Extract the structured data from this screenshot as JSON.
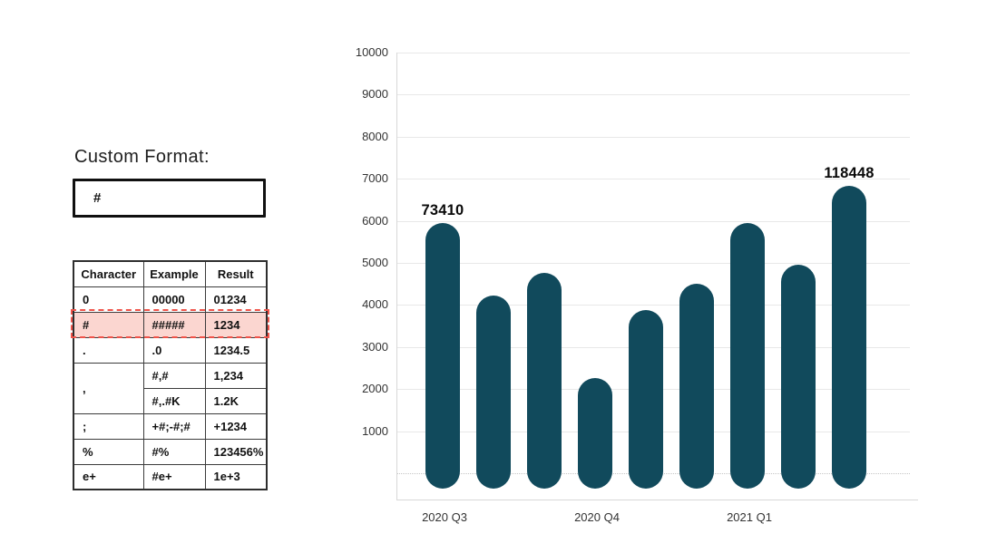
{
  "left_panel": {
    "title": "Custom Format:",
    "input_value": "#",
    "table": {
      "headers": [
        "Character",
        "Example",
        "Result"
      ],
      "rows": [
        {
          "character": "0",
          "example": "00000",
          "result": "01234"
        },
        {
          "character": "#",
          "example": "#####",
          "result": "1234",
          "highlighted": true
        },
        {
          "character": ".",
          "example": ".0",
          "result": "1234.5"
        },
        {
          "character": ",",
          "example": "#,#",
          "result": "1,234"
        },
        {
          "character": "",
          "example": "#,.#K",
          "result": "1.2K"
        },
        {
          "character": ";",
          "example": "+#;-#;#",
          "result": "+1234"
        },
        {
          "character": "%",
          "example": "#%",
          "result": "123456%"
        },
        {
          "character": "e+",
          "example": "#e+",
          "result": "1e+3"
        }
      ]
    },
    "highlight_colors": {
      "background": "#fbd6d0",
      "border": "#f0544a"
    }
  },
  "chart_data": {
    "type": "bar",
    "title": "",
    "xlabel": "",
    "ylabel": "",
    "ylim": [
      0,
      10000
    ],
    "y_ticks": [
      1000,
      2000,
      3000,
      4000,
      5000,
      6000,
      7000,
      8000,
      9000,
      10000
    ],
    "grid": true,
    "legend": false,
    "bar_color": "#114a5c",
    "bars": [
      {
        "value": 5950,
        "data_label": "73410"
      },
      {
        "value": 4230,
        "data_label": ""
      },
      {
        "value": 4760,
        "data_label": ""
      },
      {
        "value": 2260,
        "data_label": ""
      },
      {
        "value": 3870,
        "data_label": ""
      },
      {
        "value": 4500,
        "data_label": ""
      },
      {
        "value": 5940,
        "data_label": ""
      },
      {
        "value": 4960,
        "data_label": ""
      },
      {
        "value": 6840,
        "data_label": "118448"
      }
    ],
    "x_tick_labels": [
      {
        "text": "2020 Q3",
        "bar_index": 0
      },
      {
        "text": "2020 Q4",
        "bar_index": 3
      },
      {
        "text": "2021 Q1",
        "bar_index": 6
      }
    ]
  }
}
